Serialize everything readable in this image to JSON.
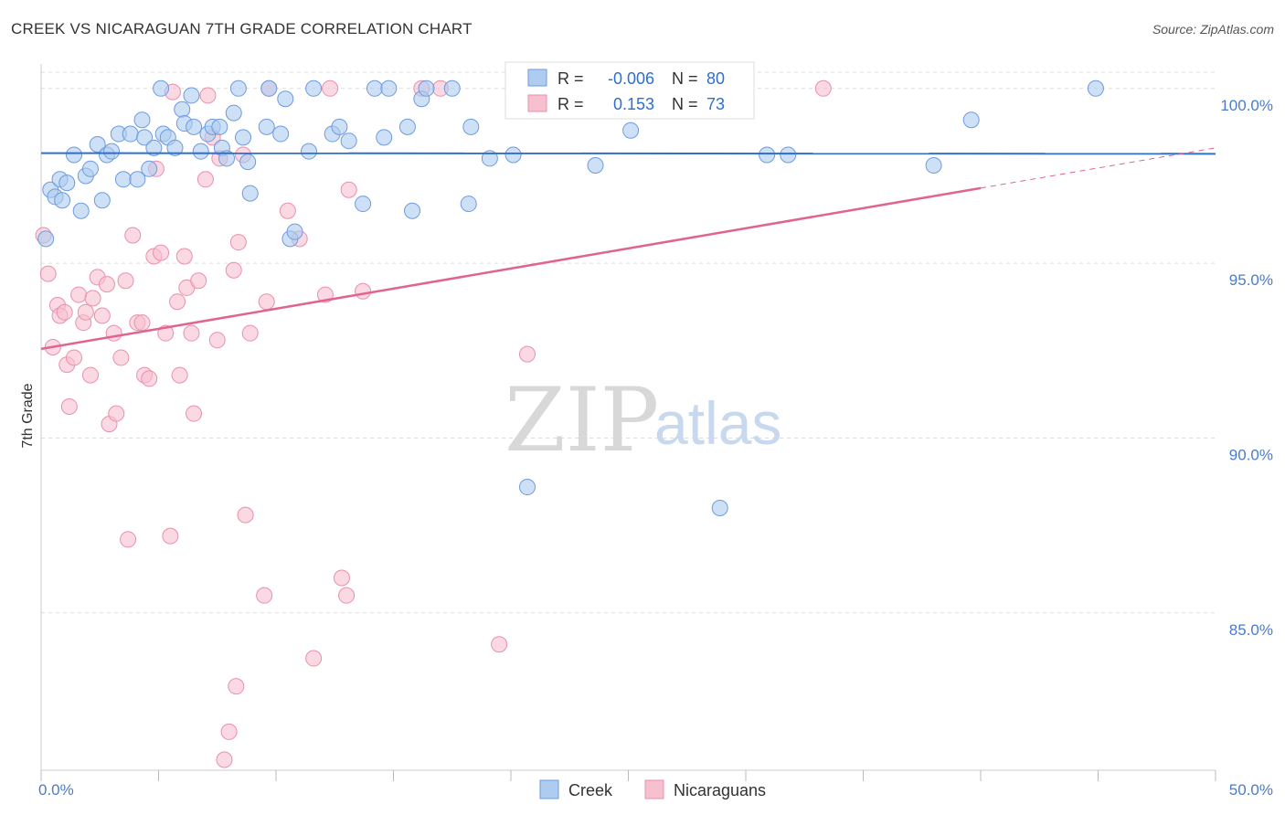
{
  "header": {
    "title": "CREEK VS NICARAGUAN 7TH GRADE CORRELATION CHART",
    "source": "Source: ZipAtlas.com"
  },
  "watermark": {
    "zip": "ZIP",
    "atlas": "atlas"
  },
  "legend_box": {
    "rows": [
      {
        "r_label": "R =",
        "r_value": "-0.006",
        "n_label": "N =",
        "n_value": "80"
      },
      {
        "r_label": "R =",
        "r_value": "0.153",
        "n_label": "N =",
        "n_value": "73"
      }
    ]
  },
  "bottom_legend": {
    "items": [
      "Creek",
      "Nicaraguans"
    ]
  },
  "colors": {
    "creek_fill": "#aecbf0",
    "creek_stroke": "#6d9be0",
    "creek_line": "#2f6fd0",
    "nic_fill": "#f6c0cf",
    "nic_stroke": "#ea8fae",
    "nic_line": "#e0648f",
    "grid": "#dddddd",
    "tick_text": "#4a7cc9"
  },
  "chart_data": {
    "type": "scatter",
    "title": "CREEK VS NICARAGUAN 7TH GRADE CORRELATION CHART",
    "xlabel": "",
    "ylabel": "7th Grade",
    "xlim": [
      0,
      50
    ],
    "ylim": [
      80.5,
      100.7
    ],
    "x_tick_labels": [
      "0.0%",
      "50.0%"
    ],
    "y_ticks": [
      85,
      90,
      95,
      100
    ],
    "y_tick_labels": [
      "85.0%",
      "90.0%",
      "95.0%",
      "100.0%"
    ],
    "grid": true,
    "legend_position": "bottom-center",
    "series": [
      {
        "name": "Creek",
        "trend": {
          "x0": 0,
          "y0": 98.15,
          "x1": 50,
          "y1": 98.13,
          "dashed_from": null
        },
        "points": [
          [
            0.2,
            95.7
          ],
          [
            0.4,
            97.1
          ],
          [
            0.6,
            96.9
          ],
          [
            0.8,
            97.4
          ],
          [
            0.9,
            96.8
          ],
          [
            1.1,
            97.3
          ],
          [
            1.4,
            98.1
          ],
          [
            1.7,
            96.5
          ],
          [
            1.9,
            97.5
          ],
          [
            2.1,
            97.7
          ],
          [
            2.4,
            98.4
          ],
          [
            2.6,
            96.8
          ],
          [
            2.8,
            98.1
          ],
          [
            3.0,
            98.2
          ],
          [
            3.3,
            98.7
          ],
          [
            3.5,
            97.4
          ],
          [
            3.8,
            98.7
          ],
          [
            4.1,
            97.4
          ],
          [
            4.3,
            99.1
          ],
          [
            4.4,
            98.6
          ],
          [
            4.6,
            97.7
          ],
          [
            4.8,
            98.3
          ],
          [
            5.1,
            100.0
          ],
          [
            5.2,
            98.7
          ],
          [
            5.4,
            98.6
          ],
          [
            5.7,
            98.3
          ],
          [
            6.0,
            99.4
          ],
          [
            6.1,
            99.0
          ],
          [
            6.4,
            99.8
          ],
          [
            6.5,
            98.9
          ],
          [
            6.8,
            98.2
          ],
          [
            7.1,
            98.7
          ],
          [
            7.3,
            98.9
          ],
          [
            7.6,
            98.9
          ],
          [
            7.7,
            98.3
          ],
          [
            7.9,
            98.0
          ],
          [
            8.2,
            99.3
          ],
          [
            8.4,
            100.0
          ],
          [
            8.6,
            98.6
          ],
          [
            8.8,
            97.9
          ],
          [
            8.9,
            97.0
          ],
          [
            9.6,
            98.9
          ],
          [
            9.7,
            100.0
          ],
          [
            10.2,
            98.7
          ],
          [
            10.4,
            99.7
          ],
          [
            10.6,
            95.7
          ],
          [
            10.8,
            95.9
          ],
          [
            11.4,
            98.2
          ],
          [
            11.6,
            100.0
          ],
          [
            12.4,
            98.7
          ],
          [
            12.7,
            98.9
          ],
          [
            13.1,
            98.5
          ],
          [
            13.7,
            96.7
          ],
          [
            14.2,
            100.0
          ],
          [
            14.6,
            98.6
          ],
          [
            14.8,
            100.0
          ],
          [
            15.6,
            98.9
          ],
          [
            15.8,
            96.5
          ],
          [
            16.2,
            99.7
          ],
          [
            16.4,
            100.0
          ],
          [
            17.5,
            100.0
          ],
          [
            18.2,
            96.7
          ],
          [
            18.3,
            98.9
          ],
          [
            19.1,
            98.0
          ],
          [
            20.1,
            98.1
          ],
          [
            20.7,
            88.6
          ],
          [
            21.6,
            100.0
          ],
          [
            23.5,
            100.0
          ],
          [
            23.6,
            97.8
          ],
          [
            24.2,
            99.5
          ],
          [
            25.1,
            98.8
          ],
          [
            25.3,
            99.5
          ],
          [
            28.9,
            88.0
          ],
          [
            30.9,
            98.1
          ],
          [
            31.8,
            98.1
          ],
          [
            38.0,
            97.8
          ],
          [
            39.6,
            99.1
          ],
          [
            44.9,
            100.0
          ],
          [
            22.7,
            100.0
          ],
          [
            24.6,
            100.0
          ]
        ]
      },
      {
        "name": "Nicaraguans",
        "trend": {
          "x0": 0,
          "y0": 92.55,
          "x1": 50,
          "y1": 98.3,
          "dashed_from": 40
        },
        "points": [
          [
            0.1,
            95.8
          ],
          [
            0.3,
            94.7
          ],
          [
            0.5,
            92.6
          ],
          [
            0.7,
            93.8
          ],
          [
            0.8,
            93.5
          ],
          [
            1.0,
            93.6
          ],
          [
            1.1,
            92.1
          ],
          [
            1.2,
            90.9
          ],
          [
            1.4,
            92.3
          ],
          [
            1.6,
            94.1
          ],
          [
            1.8,
            93.3
          ],
          [
            1.9,
            93.6
          ],
          [
            2.1,
            91.8
          ],
          [
            2.2,
            94.0
          ],
          [
            2.4,
            94.6
          ],
          [
            2.6,
            93.5
          ],
          [
            2.8,
            94.4
          ],
          [
            2.9,
            90.4
          ],
          [
            3.1,
            93.0
          ],
          [
            3.2,
            90.7
          ],
          [
            3.4,
            92.3
          ],
          [
            3.6,
            94.5
          ],
          [
            3.7,
            87.1
          ],
          [
            3.9,
            95.8
          ],
          [
            4.1,
            93.3
          ],
          [
            4.3,
            93.3
          ],
          [
            4.4,
            91.8
          ],
          [
            4.6,
            91.7
          ],
          [
            4.8,
            95.2
          ],
          [
            4.9,
            97.7
          ],
          [
            5.1,
            95.3
          ],
          [
            5.3,
            93.0
          ],
          [
            5.5,
            87.2
          ],
          [
            5.6,
            99.9
          ],
          [
            5.8,
            93.9
          ],
          [
            5.9,
            91.8
          ],
          [
            6.1,
            95.2
          ],
          [
            6.2,
            94.3
          ],
          [
            6.4,
            93.0
          ],
          [
            6.5,
            90.7
          ],
          [
            6.7,
            94.5
          ],
          [
            7.0,
            97.4
          ],
          [
            7.1,
            99.8
          ],
          [
            7.3,
            98.6
          ],
          [
            7.5,
            92.8
          ],
          [
            7.6,
            98.0
          ],
          [
            7.8,
            80.8
          ],
          [
            8.0,
            81.6
          ],
          [
            8.2,
            94.8
          ],
          [
            8.3,
            82.9
          ],
          [
            8.4,
            95.6
          ],
          [
            8.6,
            98.1
          ],
          [
            8.7,
            87.8
          ],
          [
            8.9,
            93.0
          ],
          [
            9.5,
            85.5
          ],
          [
            9.6,
            93.9
          ],
          [
            9.7,
            100.0
          ],
          [
            10.5,
            96.5
          ],
          [
            11.0,
            95.7
          ],
          [
            11.6,
            83.7
          ],
          [
            12.1,
            94.1
          ],
          [
            12.3,
            100.0
          ],
          [
            12.8,
            86.0
          ],
          [
            13.0,
            85.5
          ],
          [
            13.1,
            97.1
          ],
          [
            13.7,
            94.2
          ],
          [
            16.2,
            100.0
          ],
          [
            17.0,
            100.0
          ],
          [
            19.5,
            84.1
          ],
          [
            20.7,
            92.4
          ],
          [
            23.0,
            100.0
          ],
          [
            24.9,
            100.0
          ],
          [
            33.3,
            100.0
          ]
        ]
      }
    ]
  }
}
